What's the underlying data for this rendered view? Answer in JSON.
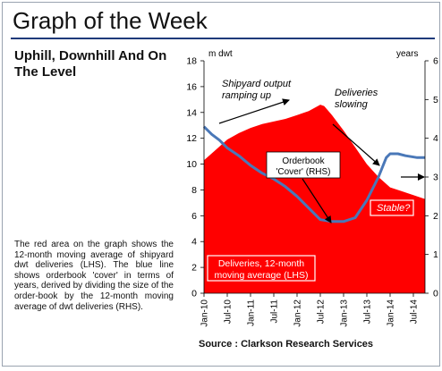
{
  "header": {
    "title": "Graph of the Week"
  },
  "subtitle": "Uphill, Downhill And On The Level",
  "description": "The red area on the graph shows the 12-month moving average of shipyard dwt deliveries (LHS). The blue line shows orderbook 'cover' in terms of years, derived by dividing the size of the order-book by the 12-month moving average of dwt deliveries (RHS).",
  "source": "Source : Clarkson Research Services",
  "chart_data": {
    "type": "area",
    "y_left_label": "m dwt",
    "y_right_label": "years",
    "y_left_range": [
      0,
      18
    ],
    "y_right_range": [
      0,
      6
    ],
    "y_left_ticks": [
      "0",
      "2",
      "4",
      "6",
      "8",
      "10",
      "12",
      "14",
      "16",
      "18"
    ],
    "y_right_ticks": [
      "0",
      "1",
      "2",
      "3",
      "4",
      "5",
      "6"
    ],
    "x_ticks": [
      "Jan-10",
      "Jul-10",
      "Jan-11",
      "Jul-11",
      "Jan-12",
      "Jul-12",
      "Jan-13",
      "Jul-13",
      "Jan-14",
      "Jul-14"
    ],
    "grid": false,
    "series": [
      {
        "name": "Deliveries, 12-month moving average (LHS)",
        "axis": "left",
        "kind": "area",
        "color": "#ff0000",
        "x": [
          "2010-01",
          "2010-04",
          "2010-07",
          "2010-10",
          "2011-01",
          "2011-04",
          "2011-07",
          "2011-10",
          "2012-01",
          "2012-04",
          "2012-07",
          "2012-08",
          "2012-10",
          "2013-01",
          "2013-04",
          "2013-07",
          "2013-10",
          "2014-01",
          "2014-04",
          "2014-07",
          "2014-10"
        ],
        "values": [
          10.3,
          11.1,
          11.9,
          12.4,
          12.8,
          13.1,
          13.3,
          13.5,
          13.8,
          14.1,
          14.6,
          14.5,
          13.8,
          12.6,
          11.3,
          10.0,
          9.0,
          8.2,
          7.9,
          7.6,
          7.3
        ]
      },
      {
        "name": "Orderbook 'Cover' (RHS)",
        "axis": "right",
        "kind": "line",
        "color": "#4a78b8",
        "x": [
          "2010-01",
          "2010-03",
          "2010-05",
          "2010-07",
          "2010-10",
          "2011-01",
          "2011-04",
          "2011-07",
          "2011-10",
          "2012-01",
          "2012-04",
          "2012-07",
          "2012-10",
          "2013-01",
          "2013-04",
          "2013-07",
          "2013-10",
          "2013-12",
          "2014-01",
          "2014-03",
          "2014-05",
          "2014-08",
          "2014-10"
        ],
        "values": [
          4.3,
          4.1,
          3.95,
          3.75,
          3.55,
          3.3,
          3.1,
          2.95,
          2.75,
          2.5,
          2.2,
          1.9,
          1.85,
          1.85,
          1.95,
          2.4,
          3.0,
          3.5,
          3.6,
          3.6,
          3.55,
          3.5,
          3.5
        ]
      }
    ],
    "annotations": [
      "Shipyard output ramping up",
      "Deliveries slowing",
      "Orderbook 'Cover' (RHS)",
      "Stable?",
      "Deliveries, 12-month moving average (LHS)"
    ],
    "x_range": [
      "2010-01",
      "2014-10"
    ]
  },
  "colors": {
    "area": "#ff0000",
    "line": "#4a78b8",
    "rule": "#1f3a7a"
  }
}
